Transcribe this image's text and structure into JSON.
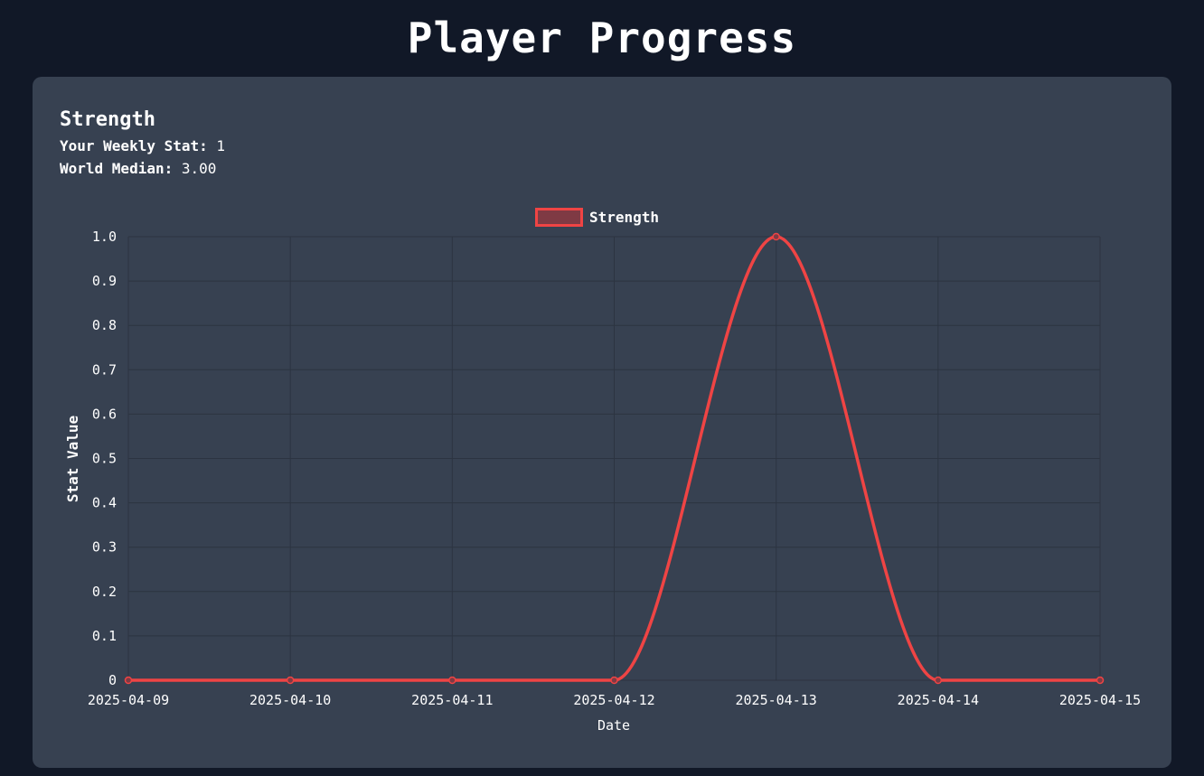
{
  "page": {
    "title": "Player Progress"
  },
  "stat": {
    "name": "Strength",
    "weekly_label": "Your Weekly Stat:",
    "weekly_value": "1",
    "median_label": "World Median:",
    "median_value": "3.00"
  },
  "colors": {
    "page_background": "#111827",
    "card_background": "#374151",
    "series_line": "#ef4444",
    "series_fill": "#7f3a44",
    "grid": "#2c3441"
  },
  "chart_data": {
    "type": "line",
    "title": "",
    "xlabel": "Date",
    "ylabel": "Stat Value",
    "x": [
      "2025-04-09",
      "2025-04-10",
      "2025-04-11",
      "2025-04-12",
      "2025-04-13",
      "2025-04-14",
      "2025-04-15"
    ],
    "series": [
      {
        "name": "Strength",
        "values": [
          0,
          0,
          0,
          0,
          1,
          0,
          0
        ]
      }
    ],
    "ylim": [
      0,
      1
    ],
    "yticks": [
      0,
      0.1,
      0.2,
      0.3,
      0.4,
      0.5,
      0.6,
      0.7,
      0.8,
      0.9,
      1.0
    ],
    "ytick_labels": [
      "0",
      "0.1",
      "0.2",
      "0.3",
      "0.4",
      "0.5",
      "0.6",
      "0.7",
      "0.8",
      "0.9",
      "1.0"
    ],
    "grid": true,
    "legend": "top-center",
    "smooth": true
  }
}
